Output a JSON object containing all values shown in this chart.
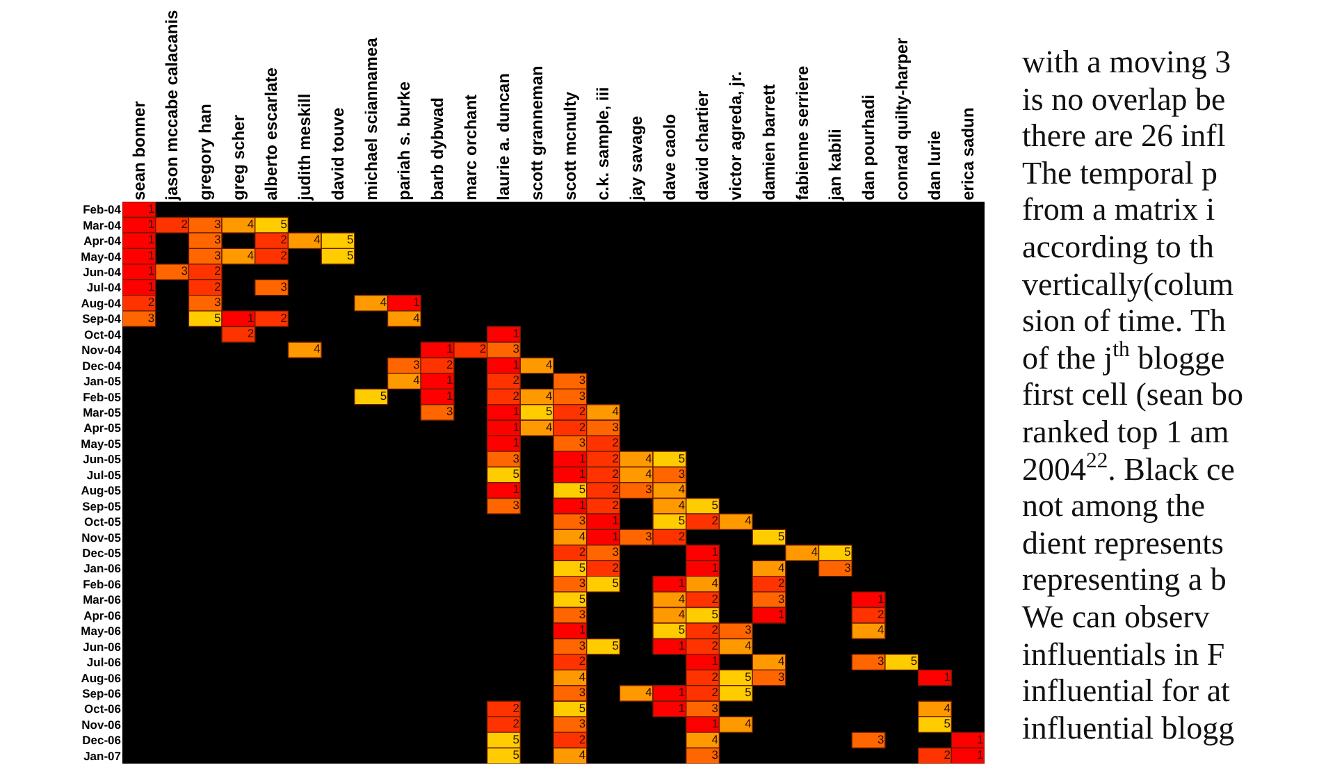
{
  "chart_data": {
    "type": "heatmap",
    "categories": [
      "sean bonner",
      "jason mccabe calacanis",
      "gregory han",
      "greg scher",
      "alberto escarlate",
      "judith meskill",
      "david touve",
      "michael sciannamea",
      "pariah s. burke",
      "barb dybwad",
      "marc orchant",
      "laurie a. duncan",
      "scott granneman",
      "scott mcnulty",
      "c.k. sample, iii",
      "jay savage",
      "dave caolo",
      "david chartier",
      "victor agreda, jr.",
      "damien barrett",
      "fabienne serriere",
      "jan kabili",
      "dan pourhadi",
      "conrad quilty-harper",
      "dan lurie",
      "erica sadun"
    ],
    "y_categories": [
      "Feb-04",
      "Mar-04",
      "Apr-04",
      "May-04",
      "Jun-04",
      "Jul-04",
      "Aug-04",
      "Sep-04",
      "Oct-04",
      "Nov-04",
      "Dec-04",
      "Jan-05",
      "Feb-05",
      "Mar-05",
      "Apr-05",
      "May-05",
      "Jun-05",
      "Jul-05",
      "Aug-05",
      "Sep-05",
      "Oct-05",
      "Nov-05",
      "Dec-05",
      "Jan-06",
      "Feb-06",
      "Mar-06",
      "Apr-06",
      "May-06",
      "Jun-06",
      "Jul-06",
      "Aug-06",
      "Sep-06",
      "Oct-06",
      "Nov-06",
      "Dec-06",
      "Jan-07"
    ],
    "cells": [
      [
        1,
        null,
        null,
        null,
        null,
        null,
        null,
        null,
        null,
        null,
        null,
        null,
        null,
        null,
        null,
        null,
        null,
        null,
        null,
        null,
        null,
        null,
        null,
        null,
        null,
        null
      ],
      [
        1,
        2,
        3,
        4,
        5,
        null,
        null,
        null,
        null,
        null,
        null,
        null,
        null,
        null,
        null,
        null,
        null,
        null,
        null,
        null,
        null,
        null,
        null,
        null,
        null,
        null
      ],
      [
        1,
        null,
        3,
        null,
        2,
        4,
        5,
        null,
        null,
        null,
        null,
        null,
        null,
        null,
        null,
        null,
        null,
        null,
        null,
        null,
        null,
        null,
        null,
        null,
        null,
        null
      ],
      [
        1,
        null,
        3,
        4,
        2,
        null,
        5,
        null,
        null,
        null,
        null,
        null,
        null,
        null,
        null,
        null,
        null,
        null,
        null,
        null,
        null,
        null,
        null,
        null,
        null,
        null
      ],
      [
        1,
        3,
        2,
        null,
        null,
        null,
        null,
        null,
        null,
        null,
        null,
        null,
        null,
        null,
        null,
        null,
        null,
        null,
        null,
        null,
        null,
        null,
        null,
        null,
        null,
        null
      ],
      [
        1,
        null,
        2,
        null,
        3,
        null,
        null,
        null,
        null,
        null,
        null,
        null,
        null,
        null,
        null,
        null,
        null,
        null,
        null,
        null,
        null,
        null,
        null,
        null,
        null,
        null
      ],
      [
        2,
        null,
        3,
        null,
        null,
        null,
        null,
        4,
        1,
        null,
        null,
        null,
        null,
        null,
        null,
        null,
        null,
        null,
        null,
        null,
        null,
        null,
        null,
        null,
        null,
        null
      ],
      [
        3,
        null,
        5,
        1,
        2,
        null,
        null,
        null,
        4,
        null,
        null,
        null,
        null,
        null,
        null,
        null,
        null,
        null,
        null,
        null,
        null,
        null,
        null,
        null,
        null,
        null
      ],
      [
        null,
        null,
        null,
        2,
        null,
        null,
        null,
        null,
        null,
        null,
        null,
        1,
        null,
        null,
        null,
        null,
        null,
        null,
        null,
        null,
        null,
        null,
        null,
        null,
        null,
        null
      ],
      [
        null,
        null,
        null,
        null,
        null,
        4,
        null,
        null,
        null,
        1,
        2,
        3,
        null,
        null,
        null,
        null,
        null,
        null,
        null,
        null,
        null,
        null,
        null,
        null,
        null,
        null
      ],
      [
        null,
        null,
        null,
        null,
        null,
        null,
        null,
        null,
        3,
        2,
        null,
        1,
        4,
        null,
        null,
        null,
        null,
        null,
        null,
        null,
        null,
        null,
        null,
        null,
        null,
        null
      ],
      [
        null,
        null,
        null,
        null,
        null,
        null,
        null,
        null,
        4,
        1,
        null,
        2,
        null,
        3,
        null,
        null,
        null,
        null,
        null,
        null,
        null,
        null,
        null,
        null,
        null,
        null
      ],
      [
        null,
        null,
        null,
        null,
        null,
        null,
        null,
        5,
        null,
        1,
        null,
        2,
        4,
        3,
        null,
        null,
        null,
        null,
        null,
        null,
        null,
        null,
        null,
        null,
        null,
        null
      ],
      [
        null,
        null,
        null,
        null,
        null,
        null,
        null,
        null,
        null,
        3,
        null,
        1,
        5,
        2,
        4,
        null,
        null,
        null,
        null,
        null,
        null,
        null,
        null,
        null,
        null,
        null
      ],
      [
        null,
        null,
        null,
        null,
        null,
        null,
        null,
        null,
        null,
        null,
        null,
        1,
        4,
        2,
        3,
        null,
        null,
        null,
        null,
        null,
        null,
        null,
        null,
        null,
        null,
        null
      ],
      [
        null,
        null,
        null,
        null,
        null,
        null,
        null,
        null,
        null,
        null,
        null,
        1,
        null,
        3,
        2,
        null,
        null,
        null,
        null,
        null,
        null,
        null,
        null,
        null,
        null,
        null
      ],
      [
        null,
        null,
        null,
        null,
        null,
        null,
        null,
        null,
        null,
        null,
        null,
        3,
        null,
        1,
        2,
        4,
        5,
        null,
        null,
        null,
        null,
        null,
        null,
        null,
        null,
        null
      ],
      [
        null,
        null,
        null,
        null,
        null,
        null,
        null,
        null,
        null,
        null,
        null,
        5,
        null,
        1,
        2,
        4,
        3,
        null,
        null,
        null,
        null,
        null,
        null,
        null,
        null,
        null
      ],
      [
        null,
        null,
        null,
        null,
        null,
        null,
        null,
        null,
        null,
        null,
        null,
        1,
        null,
        5,
        2,
        3,
        4,
        null,
        null,
        null,
        null,
        null,
        null,
        null,
        null,
        null
      ],
      [
        null,
        null,
        null,
        null,
        null,
        null,
        null,
        null,
        null,
        null,
        null,
        3,
        null,
        1,
        2,
        null,
        4,
        5,
        null,
        null,
        null,
        null,
        null,
        null,
        null,
        null
      ],
      [
        null,
        null,
        null,
        null,
        null,
        null,
        null,
        null,
        null,
        null,
        null,
        null,
        null,
        3,
        1,
        null,
        5,
        2,
        4,
        null,
        null,
        null,
        null,
        null,
        null,
        null
      ],
      [
        null,
        null,
        null,
        null,
        null,
        null,
        null,
        null,
        null,
        null,
        null,
        null,
        null,
        4,
        1,
        3,
        2,
        null,
        null,
        5,
        null,
        null,
        null,
        null,
        null,
        null
      ],
      [
        null,
        null,
        null,
        null,
        null,
        null,
        null,
        null,
        null,
        null,
        null,
        null,
        null,
        2,
        3,
        null,
        null,
        1,
        null,
        null,
        4,
        5,
        null,
        null,
        null,
        null
      ],
      [
        null,
        null,
        null,
        null,
        null,
        null,
        null,
        null,
        null,
        null,
        null,
        null,
        null,
        5,
        2,
        null,
        null,
        1,
        null,
        4,
        null,
        3,
        null,
        null,
        null,
        null
      ],
      [
        null,
        null,
        null,
        null,
        null,
        null,
        null,
        null,
        null,
        null,
        null,
        null,
        null,
        3,
        5,
        null,
        1,
        4,
        null,
        2,
        null,
        null,
        null,
        null,
        null,
        null
      ],
      [
        null,
        null,
        null,
        null,
        null,
        null,
        null,
        null,
        null,
        null,
        null,
        null,
        null,
        5,
        null,
        null,
        4,
        2,
        null,
        3,
        null,
        null,
        1,
        null,
        null,
        null
      ],
      [
        null,
        null,
        null,
        null,
        null,
        null,
        null,
        null,
        null,
        null,
        null,
        null,
        null,
        3,
        null,
        null,
        4,
        5,
        null,
        1,
        null,
        null,
        2,
        null,
        null,
        null
      ],
      [
        null,
        null,
        null,
        null,
        null,
        null,
        null,
        null,
        null,
        null,
        null,
        null,
        null,
        1,
        null,
        null,
        5,
        2,
        3,
        null,
        null,
        null,
        4,
        null,
        null,
        null
      ],
      [
        null,
        null,
        null,
        null,
        null,
        null,
        null,
        null,
        null,
        null,
        null,
        null,
        null,
        3,
        5,
        null,
        1,
        2,
        4,
        null,
        null,
        null,
        null,
        null,
        null,
        null
      ],
      [
        null,
        null,
        null,
        null,
        null,
        null,
        null,
        null,
        null,
        null,
        null,
        null,
        null,
        2,
        null,
        null,
        null,
        1,
        null,
        4,
        null,
        null,
        3,
        5,
        null,
        null
      ],
      [
        null,
        null,
        null,
        null,
        null,
        null,
        null,
        null,
        null,
        null,
        null,
        null,
        null,
        4,
        null,
        null,
        null,
        2,
        5,
        3,
        null,
        null,
        null,
        null,
        1,
        null
      ],
      [
        null,
        null,
        null,
        null,
        null,
        null,
        null,
        null,
        null,
        null,
        null,
        null,
        null,
        3,
        null,
        4,
        1,
        2,
        5,
        null,
        null,
        null,
        null,
        null,
        null,
        null
      ],
      [
        null,
        null,
        null,
        null,
        null,
        null,
        null,
        null,
        null,
        null,
        null,
        2,
        null,
        5,
        null,
        null,
        1,
        3,
        null,
        null,
        null,
        null,
        null,
        null,
        4,
        null
      ],
      [
        null,
        null,
        null,
        null,
        null,
        null,
        null,
        null,
        null,
        null,
        null,
        2,
        null,
        3,
        null,
        null,
        null,
        1,
        4,
        null,
        null,
        null,
        null,
        null,
        5,
        null
      ],
      [
        null,
        null,
        null,
        null,
        null,
        null,
        null,
        null,
        null,
        null,
        null,
        5,
        null,
        2,
        null,
        null,
        null,
        4,
        null,
        null,
        null,
        null,
        3,
        null,
        null,
        1
      ],
      [
        null,
        null,
        null,
        null,
        null,
        null,
        null,
        null,
        null,
        null,
        null,
        5,
        null,
        4,
        null,
        null,
        null,
        3,
        null,
        null,
        null,
        null,
        null,
        null,
        2,
        1
      ]
    ],
    "data_labels": true,
    "annotations": [
      "with a moving 3",
      "is no overlap be",
      "there are 26 infl",
      "The temporal p",
      "from a matrix i",
      "according to th",
      "vertically(colum",
      "sion of time. Th",
      "of the j$^{th}$ blogge",
      "first cell (sean bo",
      "ranked top 1 am",
      "2004$^{22}$. Black ce",
      "not among the",
      "dient represents",
      "representing a b",
      "We can observ",
      "influentials in F",
      "influential for at",
      "influential blogg"
    ]
  }
}
